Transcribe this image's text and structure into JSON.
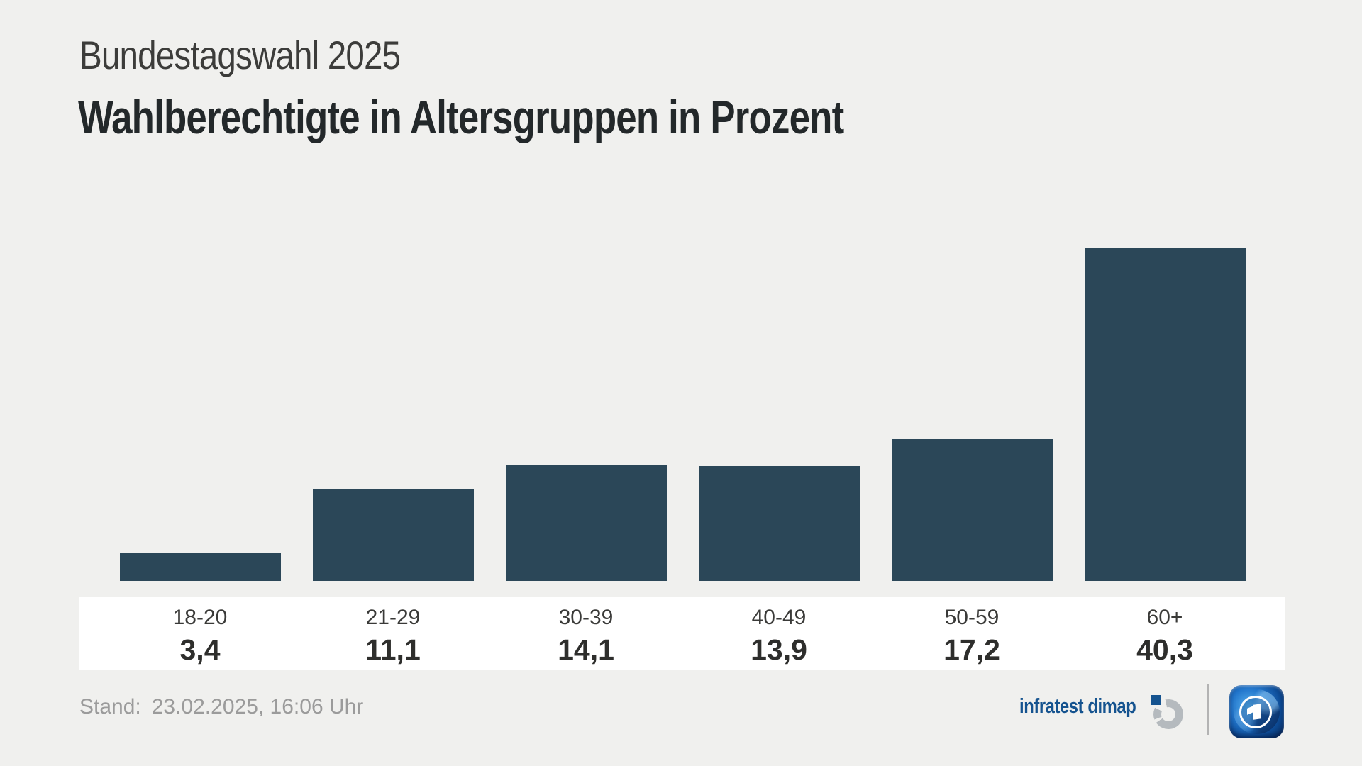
{
  "header": {
    "subtitle": "Bundestagswahl 2025",
    "title": "Wahlberechtigte in Altersgruppen in Prozent"
  },
  "chart_data": {
    "type": "bar",
    "title": "Wahlberechtigte in Altersgruppen in Prozent",
    "subtitle": "Bundestagswahl 2025",
    "categories": [
      "18-20",
      "21-29",
      "30-39",
      "40-49",
      "50-59",
      "60+"
    ],
    "values": [
      3.4,
      11.1,
      14.1,
      13.9,
      17.2,
      40.3
    ],
    "value_labels": [
      "3,4",
      "11,1",
      "14,1",
      "13,9",
      "17,2",
      "40,3"
    ],
    "unit": "Prozent",
    "ylim": [
      0,
      40.3
    ],
    "grid": false,
    "legend": false,
    "bar_color": "#2b4758",
    "background_color": "#f0f0ee",
    "label_band_color": "#ffffff"
  },
  "footer": {
    "stand_label": "Stand:",
    "stand_value": "23.02.2025, 16:06 Uhr",
    "source_wordmark": "infratest dimap",
    "source_icon": "infratest-dimap-mark",
    "broadcaster_icon": "tagesschau-globe",
    "brand_blue": "#15538f"
  }
}
